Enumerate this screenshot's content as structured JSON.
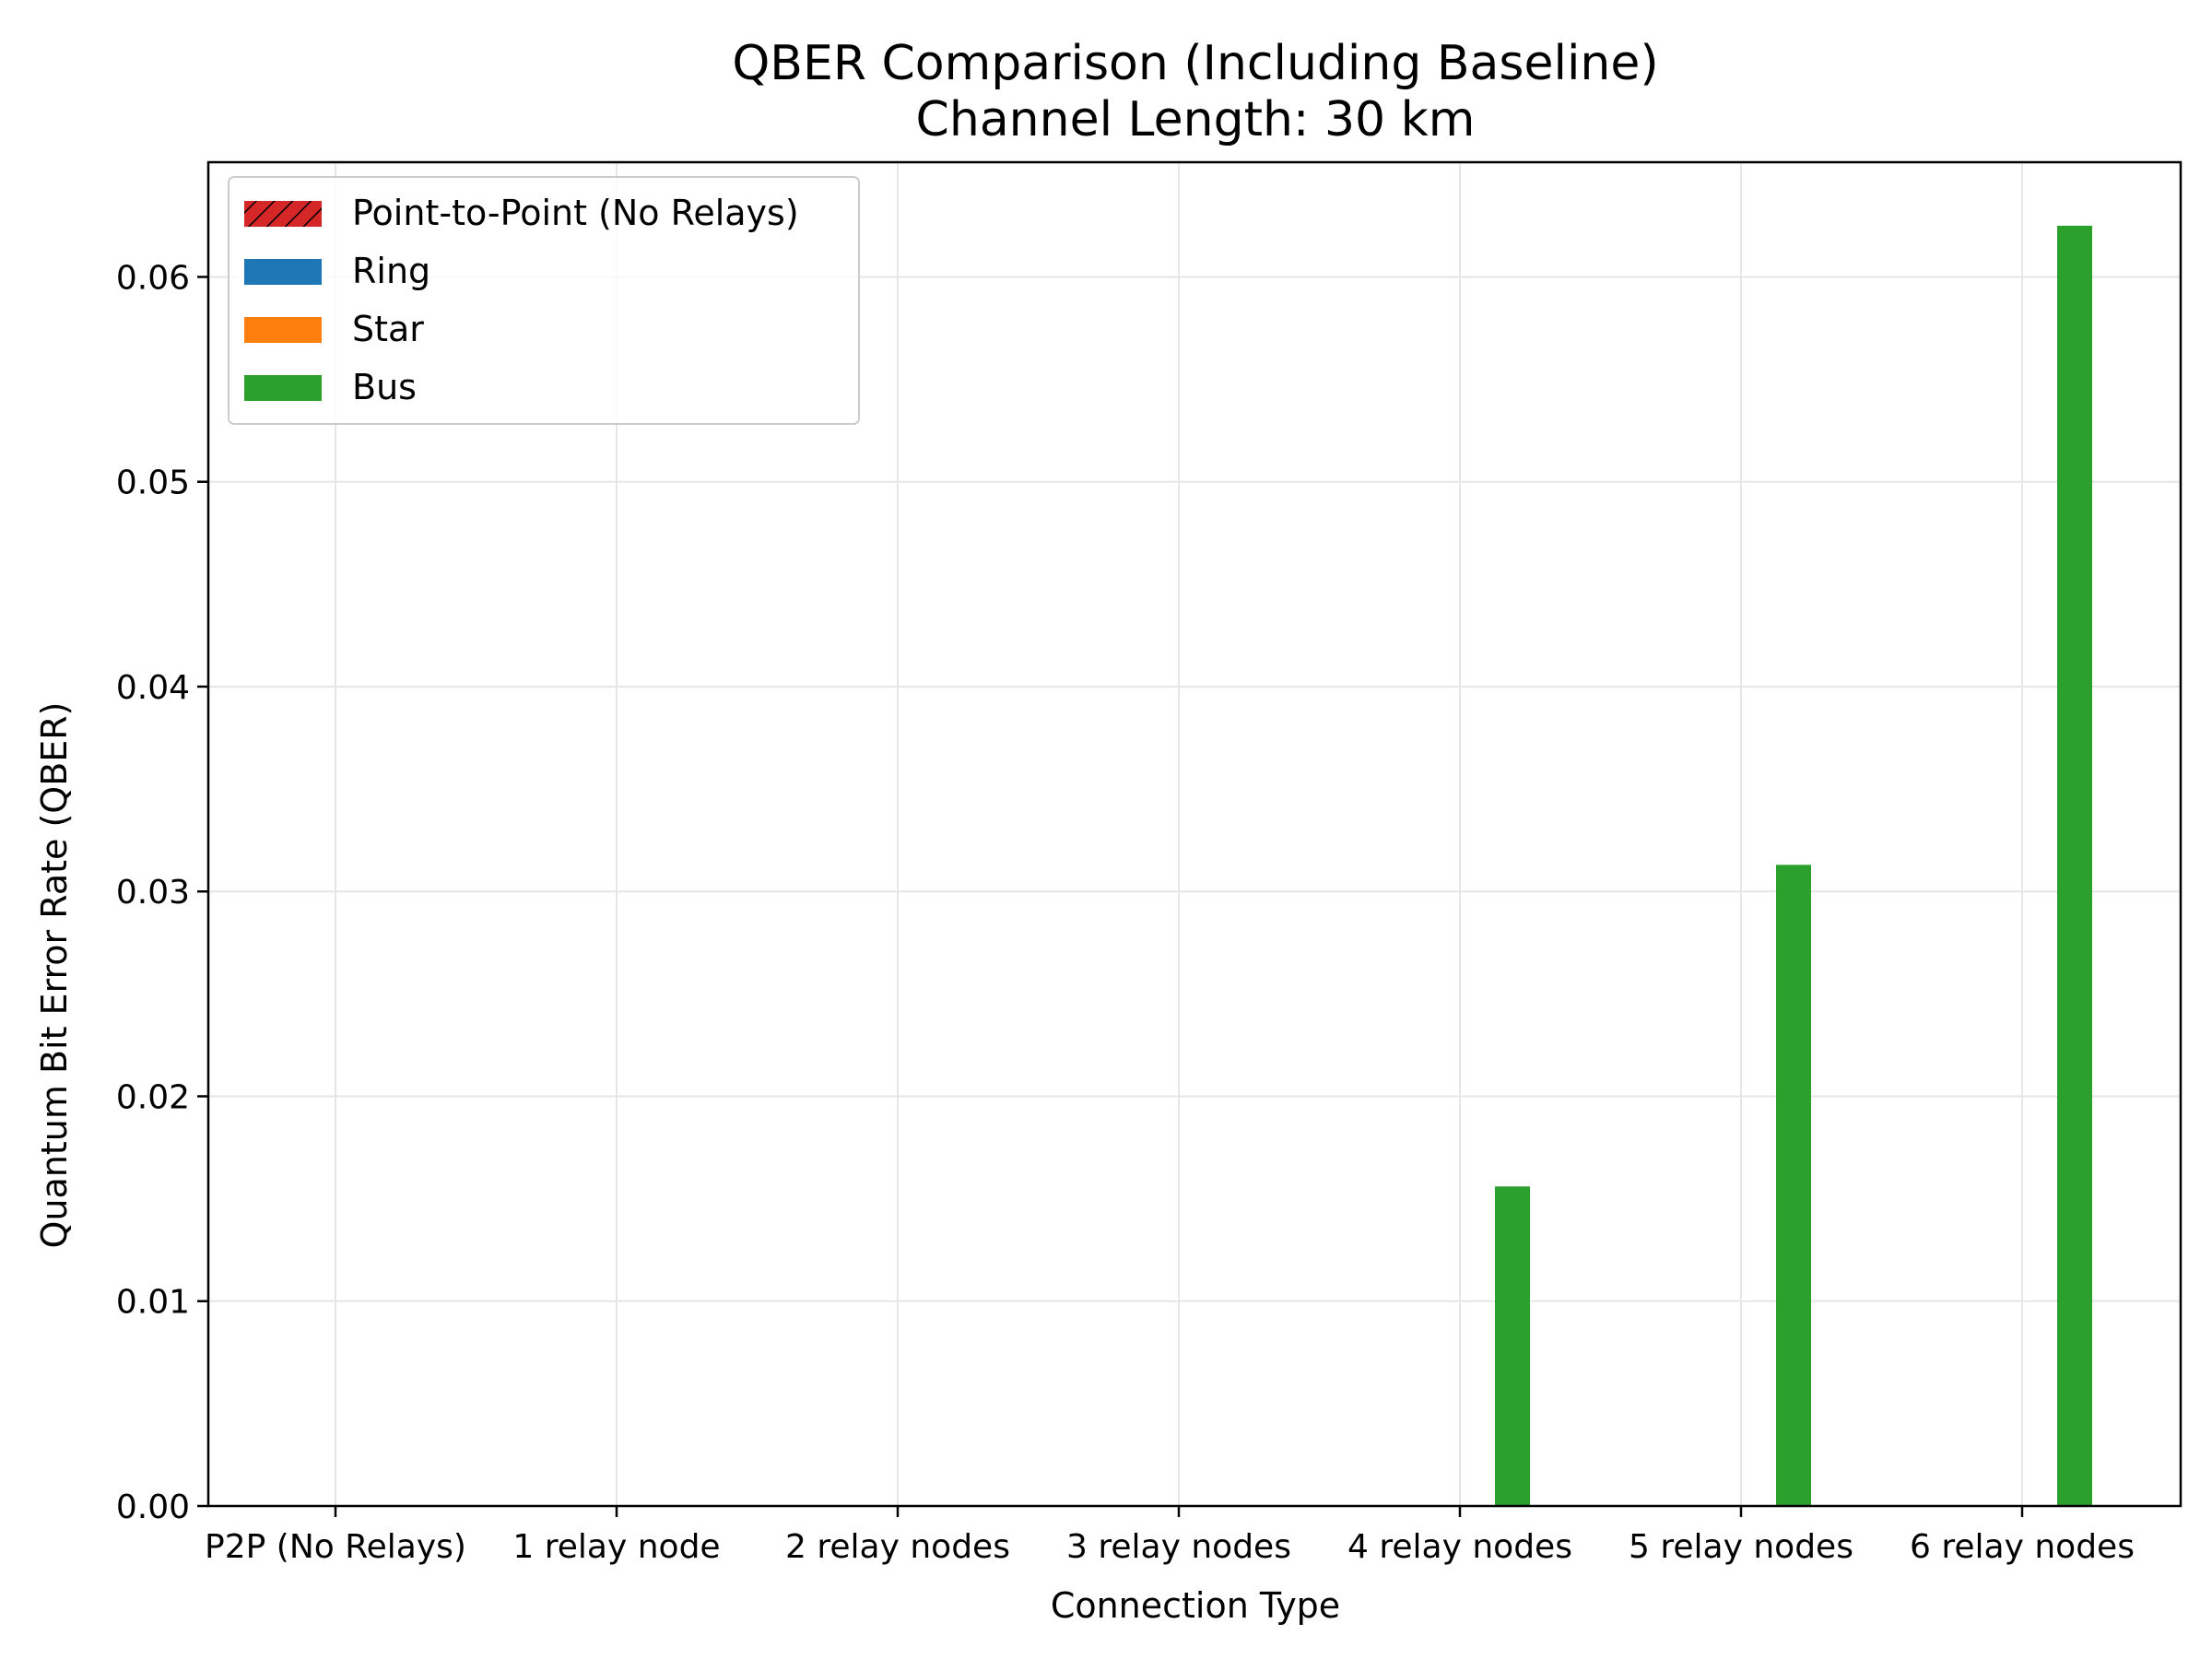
{
  "chart_data": {
    "type": "bar",
    "title": "QBER Comparison (Including Baseline)",
    "subtitle": "Channel Length: 30 km",
    "xlabel": "Connection Type",
    "ylabel": "Quantum Bit Error Rate (QBER)",
    "ylim": [
      0,
      0.0656
    ],
    "yticks": [
      "0.00",
      "0.01",
      "0.02",
      "0.03",
      "0.04",
      "0.05",
      "0.06"
    ],
    "categories": [
      "P2P (No Relays)",
      "1 relay node",
      "2 relay nodes",
      "3 relay nodes",
      "4 relay nodes",
      "5 relay nodes",
      "6 relay nodes"
    ],
    "grid": true,
    "legend_position": "top-left",
    "series": [
      {
        "name": "Point-to-Point (No Relays)",
        "color": "#d62728",
        "hatch": "diagonal",
        "values": [
          0,
          null,
          null,
          null,
          null,
          null,
          null
        ]
      },
      {
        "name": "Ring",
        "color": "#1f77b4",
        "values": [
          null,
          0,
          0,
          0,
          0,
          0,
          0
        ]
      },
      {
        "name": "Star",
        "color": "#ff7f0e",
        "values": [
          null,
          0,
          0,
          0,
          0,
          0,
          0
        ]
      },
      {
        "name": "Bus",
        "color": "#2ca02c",
        "values": [
          null,
          0,
          0,
          0,
          0.0156,
          0.0313,
          0.0625
        ]
      }
    ]
  }
}
